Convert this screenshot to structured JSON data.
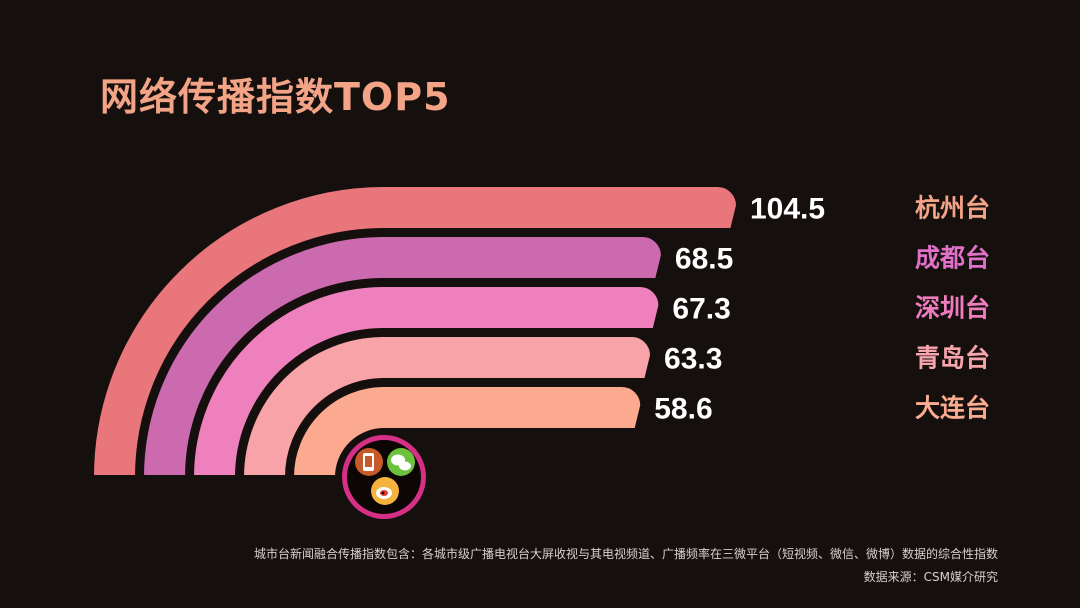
{
  "chart_data": {
    "type": "bar",
    "title": "网络传播指数TOP5",
    "categories": [
      "杭州台",
      "成都台",
      "深圳台",
      "青岛台",
      "大连台"
    ],
    "values": [
      104.5,
      68.5,
      67.3,
      63.3,
      58.6
    ],
    "colors": [
      "#e8767a",
      "#cc6ab0",
      "#ee80bd",
      "#f7a3a8",
      "#fbaa8f"
    ],
    "label_colors": [
      "#f4a486",
      "#e070c8",
      "#f07cc0",
      "#f8a4ac",
      "#fbab90"
    ],
    "icons": [
      "phone-icon",
      "wechat-icon",
      "weibo-icon"
    ]
  },
  "footnote": "城市台新闻融合传播指数包含：各城市级广播电视台大屏收视与其电视频道、广播频率在三微平台（短视频、微信、微博）数据的综合性指数",
  "source": "数据来源：CSM媒介研究"
}
